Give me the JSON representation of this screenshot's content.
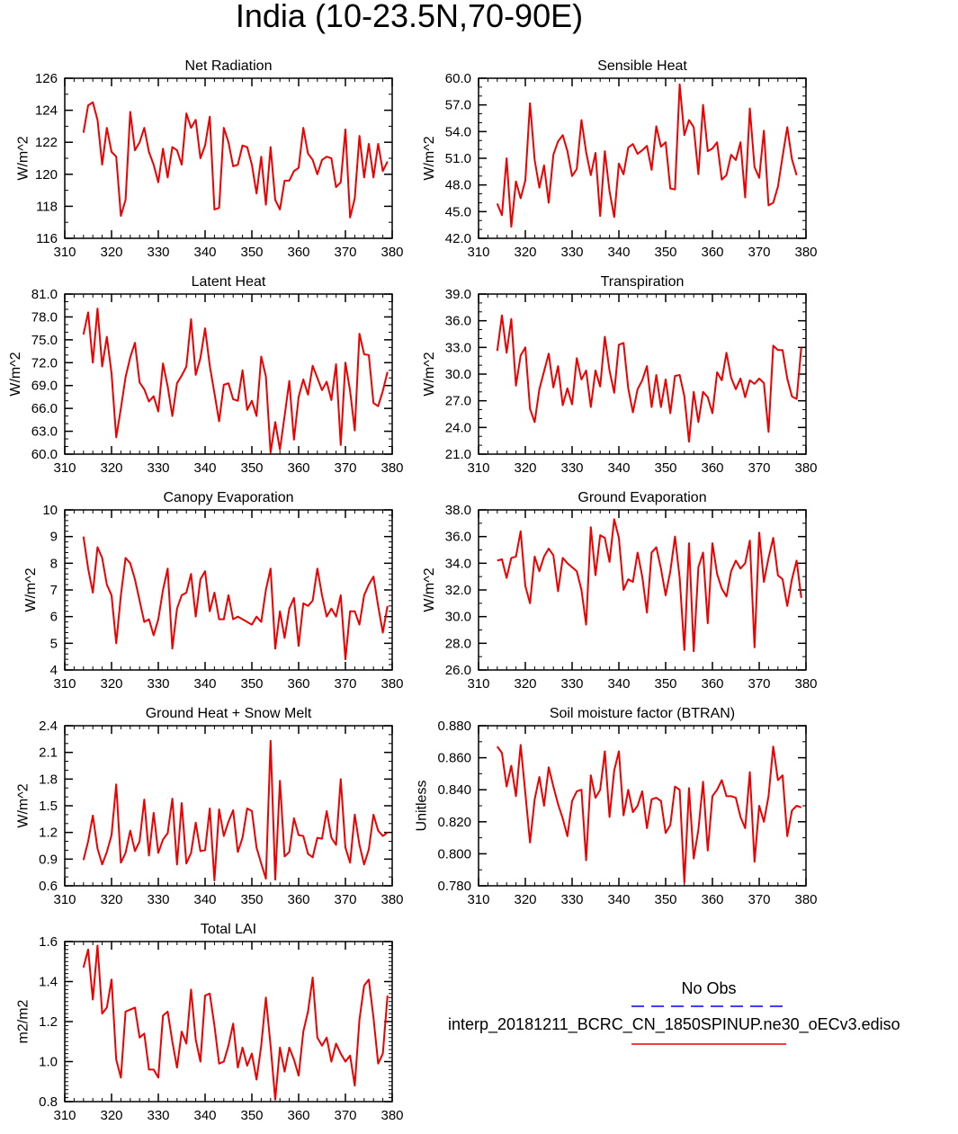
{
  "title": "India (10-23.5N,70-90E)",
  "legend": {
    "title": "No Obs",
    "entries": [
      {
        "label": "",
        "color": "#0000ee",
        "style": "dashed"
      },
      {
        "label": "interp_20181211_BCRC_CN_1850SPINUP.ne30_oECv3.ediso",
        "color": "#ee0000",
        "style": "solid"
      }
    ]
  },
  "chart_data": [
    {
      "type": "line",
      "title": "Net Radiation",
      "ylabel": "W/m^2",
      "xlim": [
        310,
        380
      ],
      "ylim": [
        116,
        126
      ],
      "xticks": [
        "310",
        "320",
        "330",
        "340",
        "350",
        "360",
        "370",
        "380"
      ],
      "yticks": [
        "116",
        "118",
        "120",
        "122",
        "124",
        "126"
      ],
      "x_start": 314,
      "series": [
        {
          "color": "#ee0000",
          "values": [
            122.6,
            124.3,
            124.5,
            123.4,
            120.6,
            122.9,
            121.4,
            121.1,
            117.4,
            118.4,
            123.9,
            121.5,
            122.0,
            122.9,
            121.4,
            120.6,
            119.5,
            121.6,
            119.8,
            121.7,
            121.5,
            120.6,
            123.8,
            122.9,
            123.4,
            121.0,
            121.8,
            123.6,
            117.8,
            117.9,
            122.9,
            122.0,
            120.5,
            120.6,
            121.8,
            121.7,
            120.6,
            118.8,
            121.1,
            118.1,
            121.7,
            118.4,
            117.8,
            119.6,
            119.6,
            120.2,
            120.4,
            122.9,
            121.3,
            120.9,
            120.0,
            120.9,
            121.1,
            121.0,
            119.2,
            119.5,
            122.8,
            117.3,
            118.5,
            122.4,
            119.8,
            121.9,
            119.8,
            121.9,
            120.2,
            120.8
          ]
        }
      ]
    },
    {
      "type": "line",
      "title": "Sensible Heat",
      "ylabel": "W/m^2",
      "xlim": [
        310,
        380
      ],
      "ylim": [
        42,
        60
      ],
      "xticks": [
        "310",
        "320",
        "330",
        "340",
        "350",
        "360",
        "370",
        "380"
      ],
      "yticks": [
        "42.0",
        "45.0",
        "48.0",
        "51.0",
        "54.0",
        "57.0",
        "60.0"
      ],
      "x_start": 314,
      "series": [
        {
          "color": "#ee0000",
          "values": [
            45.9,
            44.6,
            51.0,
            43.3,
            48.4,
            46.5,
            48.5,
            57.2,
            50.8,
            47.7,
            50.2,
            46.0,
            51.4,
            52.9,
            53.6,
            51.8,
            49.0,
            49.8,
            55.3,
            51.7,
            49.1,
            51.6,
            44.5,
            51.8,
            47.3,
            44.4,
            50.4,
            49.2,
            52.2,
            52.6,
            51.5,
            51.9,
            52.4,
            49.7,
            54.6,
            52.3,
            52.8,
            47.6,
            47.5,
            59.3,
            53.6,
            55.3,
            54.5,
            49.2,
            57.0,
            51.8,
            52.1,
            52.8,
            48.6,
            49.1,
            51.4,
            50.8,
            52.8,
            46.6,
            56.6,
            50.0,
            48.8,
            54.1,
            45.7,
            46.0,
            47.8,
            51.2,
            54.5,
            50.9,
            49.1
          ]
        }
      ]
    },
    {
      "type": "line",
      "title": "Latent Heat",
      "ylabel": "W/m^2",
      "xlim": [
        310,
        380
      ],
      "ylim": [
        60,
        81
      ],
      "xticks": [
        "310",
        "320",
        "330",
        "340",
        "350",
        "360",
        "370",
        "380"
      ],
      "yticks": [
        "60.0",
        "63.0",
        "66.0",
        "69.0",
        "72.0",
        "75.0",
        "78.0",
        "81.0"
      ],
      "x_start": 314,
      "series": [
        {
          "color": "#ee0000",
          "values": [
            75.7,
            78.6,
            72.0,
            79.1,
            71.5,
            75.4,
            70.6,
            62.2,
            66.0,
            70.1,
            72.7,
            74.6,
            69.4,
            68.5,
            66.9,
            67.6,
            65.6,
            71.9,
            68.9,
            65.0,
            69.3,
            70.3,
            71.5,
            77.7,
            70.4,
            72.6,
            76.5,
            71.6,
            68.0,
            64.3,
            69.1,
            69.3,
            67.2,
            67.0,
            71.0,
            65.8,
            67.0,
            65.0,
            72.8,
            70.2,
            60.2,
            64.2,
            60.6,
            65.0,
            69.6,
            61.9,
            67.5,
            69.8,
            67.8,
            71.6,
            70.0,
            68.4,
            69.5,
            67.1,
            71.8,
            61.2,
            72.0,
            68.3,
            63.1,
            75.8,
            73.1,
            73.0,
            66.7,
            66.3,
            68.3,
            70.8
          ]
        }
      ]
    },
    {
      "type": "line",
      "title": "Transpiration",
      "ylabel": "W/m^2",
      "xlim": [
        310,
        380
      ],
      "ylim": [
        21,
        39
      ],
      "xticks": [
        "310",
        "320",
        "330",
        "340",
        "350",
        "360",
        "370",
        "380"
      ],
      "yticks": [
        "21.0",
        "24.0",
        "27.0",
        "30.0",
        "33.0",
        "36.0",
        "39.0"
      ],
      "x_start": 314,
      "series": [
        {
          "color": "#ee0000",
          "values": [
            32.6,
            36.6,
            32.4,
            36.2,
            28.7,
            32.1,
            33.0,
            26.1,
            24.6,
            28.3,
            30.3,
            32.3,
            28.5,
            30.9,
            26.5,
            28.4,
            26.6,
            31.8,
            29.4,
            30.4,
            26.3,
            30.4,
            28.6,
            34.2,
            30.4,
            27.9,
            33.3,
            33.5,
            28.4,
            25.7,
            28.3,
            29.3,
            30.9,
            26.3,
            29.9,
            26.3,
            29.4,
            25.6,
            29.8,
            29.9,
            27.5,
            22.4,
            28.0,
            24.6,
            28.0,
            27.4,
            25.6,
            30.2,
            29.3,
            32.4,
            29.6,
            28.3,
            29.5,
            27.4,
            29.3,
            28.9,
            29.5,
            29.0,
            23.5,
            33.2,
            32.7,
            32.7,
            29.5,
            27.5,
            27.2,
            33.0
          ]
        }
      ]
    },
    {
      "type": "line",
      "title": "Canopy Evaporation",
      "ylabel": "W/m^2",
      "xlim": [
        310,
        380
      ],
      "ylim": [
        4,
        10
      ],
      "xticks": [
        "310",
        "320",
        "330",
        "340",
        "350",
        "360",
        "370",
        "380"
      ],
      "yticks": [
        "4",
        "5",
        "6",
        "7",
        "8",
        "9",
        "10"
      ],
      "x_start": 314,
      "series": [
        {
          "color": "#ee0000",
          "values": [
            9.0,
            7.8,
            6.9,
            8.6,
            8.2,
            7.2,
            6.8,
            5.0,
            6.8,
            8.2,
            8.0,
            7.4,
            6.6,
            5.8,
            5.9,
            5.3,
            5.9,
            7.0,
            7.8,
            4.8,
            6.3,
            6.8,
            6.9,
            7.6,
            6.0,
            7.4,
            7.7,
            6.2,
            6.9,
            5.9,
            5.9,
            6.8,
            5.9,
            6.0,
            5.9,
            5.8,
            5.7,
            6.0,
            5.8,
            7.0,
            7.8,
            4.8,
            6.2,
            5.2,
            6.3,
            6.7,
            4.9,
            6.5,
            6.4,
            6.6,
            7.8,
            6.8,
            6.0,
            6.3,
            6.0,
            6.8,
            4.4,
            6.2,
            6.2,
            5.7,
            6.8,
            7.2,
            7.5,
            6.4,
            5.4,
            6.4
          ]
        }
      ]
    },
    {
      "type": "line",
      "title": "Ground Evaporation",
      "ylabel": "W/m^2",
      "xlim": [
        310,
        380
      ],
      "ylim": [
        26,
        38
      ],
      "xticks": [
        "310",
        "320",
        "330",
        "340",
        "350",
        "360",
        "370",
        "380"
      ],
      "yticks": [
        "26.0",
        "28.0",
        "30.0",
        "32.0",
        "34.0",
        "36.0",
        "38.0"
      ],
      "x_start": 314,
      "series": [
        {
          "color": "#ee0000",
          "values": [
            34.2,
            34.3,
            32.9,
            34.4,
            34.5,
            36.4,
            32.3,
            31.0,
            34.5,
            33.4,
            34.5,
            35.1,
            34.6,
            31.9,
            34.4,
            34.0,
            33.7,
            33.4,
            32.0,
            29.4,
            36.7,
            33.1,
            36.1,
            35.9,
            34.1,
            37.3,
            35.9,
            32.0,
            32.8,
            32.6,
            34.8,
            33.0,
            30.3,
            34.8,
            35.2,
            33.6,
            31.6,
            33.4,
            36.0,
            32.9,
            27.5,
            35.5,
            27.4,
            33.7,
            34.8,
            29.5,
            35.5,
            33.2,
            32.1,
            31.5,
            33.4,
            34.2,
            33.6,
            34.0,
            35.7,
            27.7,
            36.3,
            32.6,
            34.4,
            35.9,
            33.1,
            32.8,
            30.8,
            32.8,
            34.2,
            31.4
          ]
        }
      ]
    },
    {
      "type": "line",
      "title": "Ground Heat + Snow Melt",
      "ylabel": "W/m^2",
      "xlim": [
        310,
        380
      ],
      "ylim": [
        0.6,
        2.4
      ],
      "xticks": [
        "310",
        "320",
        "330",
        "340",
        "350",
        "360",
        "370",
        "380"
      ],
      "yticks": [
        "0.6",
        "0.9",
        "1.2",
        "1.5",
        "1.8",
        "2.1",
        "2.4"
      ],
      "x_start": 314,
      "series": [
        {
          "color": "#ee0000",
          "values": [
            0.89,
            1.1,
            1.39,
            1.02,
            0.84,
            0.98,
            1.17,
            1.74,
            0.86,
            0.97,
            1.22,
            0.99,
            1.1,
            1.57,
            0.94,
            1.42,
            0.97,
            1.12,
            1.19,
            1.58,
            0.84,
            1.53,
            0.85,
            0.97,
            1.31,
            0.99,
            1.0,
            1.47,
            0.66,
            1.46,
            1.16,
            1.32,
            1.45,
            0.98,
            1.14,
            1.47,
            1.44,
            1.03,
            0.85,
            0.68,
            2.23,
            0.67,
            1.78,
            0.93,
            0.98,
            1.36,
            1.17,
            1.16,
            0.96,
            0.92,
            1.14,
            1.13,
            1.44,
            1.14,
            1.06,
            1.8,
            1.03,
            0.86,
            1.4,
            1.06,
            0.84,
            1.01,
            1.4,
            1.22,
            1.16,
            1.2
          ]
        }
      ]
    },
    {
      "type": "line",
      "title": "Soil moisture factor (BTRAN)",
      "ylabel": "Unitless",
      "xlim": [
        310,
        380
      ],
      "ylim": [
        0.78,
        0.88
      ],
      "xticks": [
        "310",
        "320",
        "330",
        "340",
        "350",
        "360",
        "370",
        "380"
      ],
      "yticks": [
        "0.780",
        "0.800",
        "0.820",
        "0.840",
        "0.860",
        "0.880"
      ],
      "x_start": 314,
      "series": [
        {
          "color": "#ee0000",
          "values": [
            0.867,
            0.863,
            0.842,
            0.855,
            0.836,
            0.868,
            0.838,
            0.807,
            0.834,
            0.848,
            0.83,
            0.854,
            0.842,
            0.831,
            0.822,
            0.811,
            0.833,
            0.839,
            0.84,
            0.796,
            0.849,
            0.835,
            0.84,
            0.864,
            0.823,
            0.852,
            0.864,
            0.824,
            0.84,
            0.826,
            0.83,
            0.839,
            0.816,
            0.834,
            0.835,
            0.833,
            0.813,
            0.818,
            0.842,
            0.84,
            0.782,
            0.841,
            0.797,
            0.815,
            0.845,
            0.802,
            0.836,
            0.84,
            0.846,
            0.836,
            0.836,
            0.835,
            0.823,
            0.816,
            0.851,
            0.795,
            0.83,
            0.82,
            0.836,
            0.867,
            0.846,
            0.849,
            0.811,
            0.827,
            0.83,
            0.829
          ]
        }
      ]
    },
    {
      "type": "line",
      "title": "Total LAI",
      "ylabel": "m2/m2",
      "xlim": [
        310,
        380
      ],
      "ylim": [
        0.8,
        1.6
      ],
      "xticks": [
        "310",
        "320",
        "330",
        "340",
        "350",
        "360",
        "370",
        "380"
      ],
      "yticks": [
        "0.8",
        "1.0",
        "1.2",
        "1.4",
        "1.6"
      ],
      "x_start": 314,
      "series": [
        {
          "color": "#ee0000",
          "values": [
            1.47,
            1.56,
            1.31,
            1.58,
            1.24,
            1.27,
            1.41,
            1.01,
            0.92,
            1.25,
            1.26,
            1.27,
            1.12,
            1.14,
            0.96,
            0.96,
            0.92,
            1.23,
            1.25,
            1.1,
            0.97,
            1.15,
            1.09,
            1.36,
            1.11,
            1.0,
            1.33,
            1.34,
            1.18,
            0.99,
            1.0,
            1.08,
            1.19,
            0.97,
            1.07,
            0.98,
            1.04,
            0.91,
            1.08,
            1.32,
            1.08,
            0.81,
            1.07,
            0.95,
            1.07,
            1.01,
            0.93,
            1.15,
            1.25,
            1.42,
            1.12,
            1.08,
            1.12,
            1.0,
            1.09,
            1.04,
            1.0,
            1.03,
            0.88,
            1.21,
            1.38,
            1.41,
            1.22,
            0.99,
            1.04,
            1.33
          ]
        }
      ]
    }
  ]
}
